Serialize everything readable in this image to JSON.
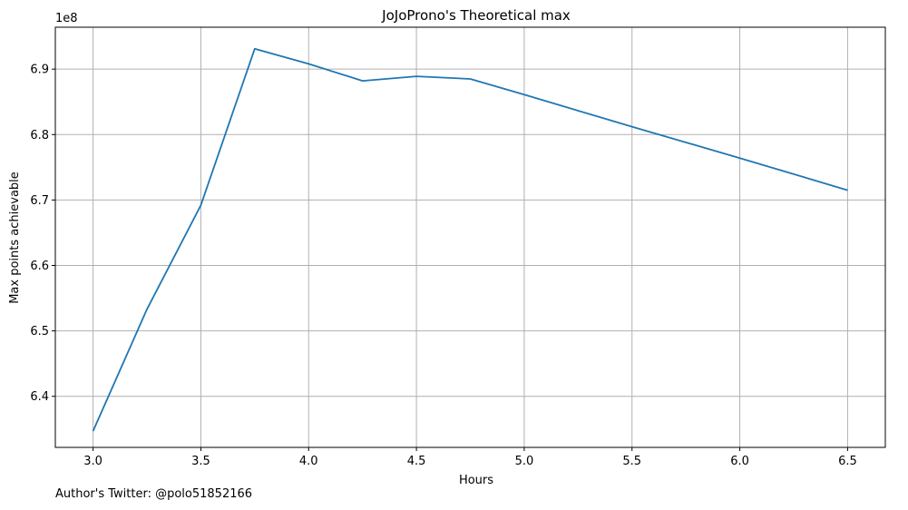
{
  "chart_data": {
    "type": "line",
    "title": "JoJoProno's Theoretical max",
    "xlabel": "Hours",
    "ylabel": "Max points achievable",
    "offset_label": "1e8",
    "x_ticks": [
      "3.0",
      "3.5",
      "4.0",
      "4.5",
      "5.0",
      "5.5",
      "6.0",
      "6.5"
    ],
    "y_ticks": [
      "6.4",
      "6.5",
      "6.6",
      "6.7",
      "6.8",
      "6.9"
    ],
    "xlim": [
      2.825,
      6.675
    ],
    "ylim": [
      6.322,
      6.964
    ],
    "grid": true,
    "line_color": "#1f77b4",
    "grid_color": "#b0b0b0",
    "series": [
      {
        "x": [
          3.0,
          3.25,
          3.5,
          3.75,
          4.0,
          4.25,
          4.5,
          4.75,
          5.0,
          5.5,
          6.0,
          6.5
        ],
        "y": [
          6.347,
          6.533,
          6.692,
          6.931,
          6.908,
          6.882,
          6.889,
          6.885,
          6.861,
          6.812,
          6.764,
          6.715
        ]
      }
    ]
  },
  "footnote": "Author's Twitter: @polo51852166"
}
